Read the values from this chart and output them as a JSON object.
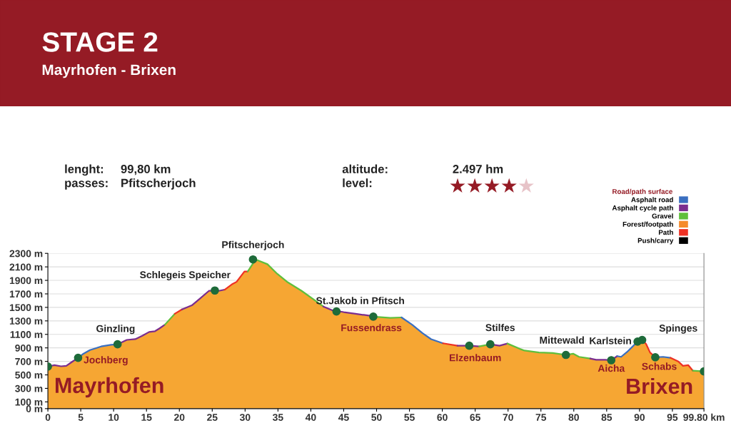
{
  "chart_data": {
    "type": "area",
    "title": "STAGE 2",
    "subtitle": "Mayrhofen - Brixen",
    "legend_title": "Road/path surface",
    "legend": "top right",
    "grid": "y",
    "xlim": [
      0,
      99.8
    ],
    "ylim": [
      0,
      2300
    ],
    "xticks": [
      0,
      5,
      10,
      15,
      20,
      25,
      30,
      35,
      40,
      45,
      50,
      55,
      60,
      65,
      70,
      75,
      80,
      85,
      90,
      95,
      {
        "value": 99.8,
        "label": "99.80 km"
      }
    ],
    "yticks": [
      {
        "value": 0,
        "label": "0 m"
      },
      {
        "value": 100,
        "label": "100 m"
      },
      {
        "value": 300,
        "label": "300 m"
      },
      {
        "value": 500,
        "label": "500 m"
      },
      {
        "value": 700,
        "label": "700 m"
      },
      {
        "value": 900,
        "label": "900 m"
      },
      {
        "value": 1100,
        "label": "1100 m"
      },
      {
        "value": 1300,
        "label": "1300 m"
      },
      {
        "value": 1500,
        "label": "1500 m"
      },
      {
        "value": 1700,
        "label": "1700 m"
      },
      {
        "value": 1900,
        "label": "1900 m"
      },
      {
        "value": 2100,
        "label": "2100 m"
      },
      {
        "value": 2300,
        "label": "2300 m"
      }
    ],
    "series": [
      {
        "color": "#f6a633",
        "x": [
          0,
          1.0,
          2.0,
          2.8,
          3.6,
          4.6,
          5.3,
          6.4,
          8.1,
          9.6,
          10.6,
          12.0,
          13.3,
          14.4,
          15.4,
          16.3,
          17.0,
          17.8,
          19.3,
          20.4,
          21.9,
          23.0,
          24.5,
          26.0,
          26.9,
          28.0,
          28.7,
          29.9,
          30.4,
          31.5,
          31.8,
          33.4,
          34.9,
          36.5,
          38.6,
          40.4,
          41.9,
          43.2,
          45.0,
          46.8,
          49.0,
          49.5,
          52.1,
          53.8,
          55.4,
          57.0,
          58.3,
          60.1,
          62.3,
          64.1,
          65.6,
          67.3,
          68.7,
          69.9,
          71.8,
          72.5,
          74.7,
          76.8,
          78.8,
          79.9,
          80.8,
          82.5,
          83.4,
          84.8,
          85.7,
          86.6,
          87.2,
          88.1,
          89.7,
          90.4,
          91.0,
          91.6,
          92.4,
          93.6,
          94.7,
          95.9,
          96.6,
          97.4,
          98.1,
          99.8
        ],
        "values": [
          624,
          645,
          627,
          634,
          688,
          753,
          806,
          867,
          921,
          946,
          953,
          1018,
          1029,
          1082,
          1136,
          1147,
          1190,
          1244,
          1405,
          1470,
          1530,
          1620,
          1745,
          1745,
          1763,
          1842,
          1878,
          2032,
          2032,
          2194,
          2201,
          2140,
          1996,
          1871,
          1745,
          1620,
          1513,
          1459,
          1430,
          1405,
          1376,
          1362,
          1344,
          1351,
          1244,
          1118,
          1029,
          968,
          932,
          932,
          921,
          953,
          932,
          964,
          885,
          860,
          832,
          824,
          796,
          814,
          767,
          742,
          724,
          724,
          717,
          778,
          767,
          839,
          993,
          1018,
          957,
          832,
          760,
          767,
          753,
          699,
          634,
          645,
          563,
          552
        ],
        "colors": [
          "#7b2d8e",
          "#7b2d8e",
          "#7b2d8e",
          "#7b2d8e",
          "#7b2d8e",
          "#3a6fc0",
          "#3a6fc0",
          "#3a6fc0",
          "#3a6fc0",
          "#3a6fc0",
          "#7b2d8e",
          "#7b2d8e",
          "#7b2d8e",
          "#7b2d8e",
          "#7b2d8e",
          "#7b2d8e",
          "#7b2d8e",
          "#5fbf3c",
          "#ee3124",
          "#7b2d8e",
          "#7b2d8e",
          "#7b2d8e",
          "#7b2d8e",
          "#7b2d8e",
          "#ee3124",
          "#ee3124",
          "#ee3124",
          "#ee3124",
          "#5fbf3c",
          "#5fbf3c",
          "#5fbf3c",
          "#5fbf3c",
          "#5fbf3c",
          "#5fbf3c",
          "#5fbf3c",
          "#5fbf3c",
          "#7b2d8e",
          "#7b2d8e",
          "#7b2d8e",
          "#7b2d8e",
          "#7b2d8e",
          "#5fbf3c",
          "#5fbf3c",
          "#3a6fc0",
          "#3a6fc0",
          "#3a6fc0",
          "#3a6fc0",
          "#ee3124",
          "#7b2d8e",
          "#7b2d8e",
          "#5fbf3c",
          "#7b2d8e",
          "#7b2d8e",
          "#5fbf3c",
          "#5fbf3c",
          "#5fbf3c",
          "#5fbf3c",
          "#5fbf3c",
          "#5fbf3c",
          "#5fbf3c",
          "#5fbf3c",
          "#7b2d8e",
          "#7b2d8e",
          "#7b2d8e",
          "#7b2d8e",
          "#3a6fc0",
          "#3a6fc0",
          "#3a6fc0",
          "#3a6fc0",
          "#ee3124",
          "#ee3124",
          "#ee3124",
          "#3a6fc0",
          "#3a6fc0",
          "#ee3124",
          "#ee3124",
          "#ee3124",
          "#ee3124",
          "#5fbf3c",
          "#5fbf3c"
        ]
      },
      {
        "type": "scatter",
        "color": "#1e6b3a",
        "marker": "circle",
        "x": [
          0,
          4.6,
          10.6,
          25.4,
          31.2,
          43.9,
          49.5,
          64.1,
          67.3,
          78.8,
          85.7,
          89.7,
          90.4,
          92.4,
          99.8
        ],
        "values": [
          624,
          753,
          953,
          1750,
          2210,
          1440,
          1362,
          932,
          953,
          796,
          717,
          993,
          1018,
          760,
          552
        ]
      },
      {
        "type": "line",
        "name": "Asphalt road",
        "color": "#3a6fc0"
      },
      {
        "type": "line",
        "name": "Asphalt cycle path",
        "color": "#7b2d8e"
      },
      {
        "type": "line",
        "name": "Gravel",
        "color": "#5fbf3c"
      },
      {
        "type": "line",
        "name": "Forest/footpath",
        "color": "#f58a2a"
      },
      {
        "type": "line",
        "name": "Path",
        "color": "#ee3124"
      },
      {
        "type": "line",
        "name": "Push/carry",
        "color": "#000000"
      }
    ],
    "annotations": [
      "lenght:",
      "99,80 km",
      "passes:",
      "Pfitscherjoch",
      "altitude:",
      "2.497 hm",
      "level:",
      {
        "text": "Pfitscherjoch",
        "x": 31.2,
        "y": 2210
      },
      {
        "text": "Schlegeis Speicher",
        "x": 25.4,
        "y": 1750
      },
      {
        "text": "Ginzling",
        "x": 10.6,
        "y": 953
      },
      {
        "text": "St.Jakob in Pfitsch",
        "x": 43.9,
        "y": 1440
      },
      {
        "text": "Stilfes",
        "x": 67.3,
        "y": 953
      },
      {
        "text": "Mittewald",
        "x": 78.8,
        "y": 796
      },
      {
        "text": "Karlstein",
        "x": 89.7,
        "y": 993
      },
      {
        "text": "Spinges",
        "x": 90.4,
        "y": 1018
      },
      {
        "text": "Jochberg",
        "x": 4.6,
        "y": 753
      },
      {
        "text": "Fussendrass",
        "x": 49.5,
        "y": 1362
      },
      {
        "text": "Elzenbaum",
        "x": 64.1,
        "y": 932
      },
      {
        "text": "Aicha",
        "x": 85.7,
        "y": 717
      },
      {
        "text": "Schabs",
        "x": 92.4,
        "y": 760
      },
      {
        "text": "Mayrhofen",
        "x": 0,
        "y": 624
      },
      {
        "text": "Brixen",
        "x": 99.8,
        "y": 552
      }
    ]
  }
}
